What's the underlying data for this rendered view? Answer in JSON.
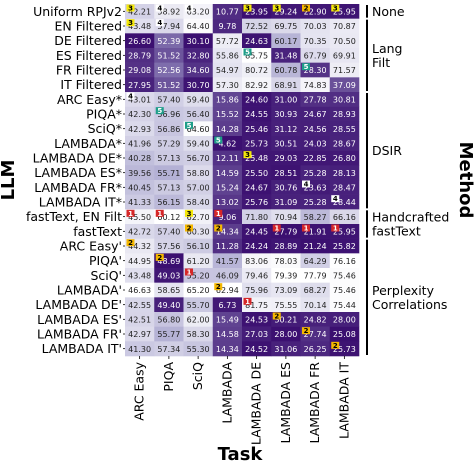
{
  "chart_data": {
    "type": "heatmap",
    "xlabel": "Task",
    "ylabel": "LLM",
    "right_label": "Method",
    "columns": [
      "ARC Easy",
      "PIQA",
      "SciQ",
      "LAMBADA",
      "LAMBADA DE",
      "LAMBADA ES",
      "LAMBADA FR",
      "LAMBADA IT"
    ],
    "rows": [
      "Uniform RPJv2",
      "EN Filtered",
      "DE Filtered",
      "ES Filtered",
      "FR Filtered",
      "IT Filtered",
      "ARC Easy*",
      "PIQA*",
      "SciQ*",
      "LAMBADA*",
      "LAMBADA DE*",
      "LAMBADA ES*",
      "LAMBADA FR*",
      "LAMBADA IT*",
      "fastText, EN Filt",
      "fastText",
      "ARC Easy'",
      "PIQA'",
      "SciQ'",
      "LAMBADA'",
      "LAMBADA DE'",
      "LAMBADA ES'",
      "LAMBADA FR'",
      "LAMBADA IT'"
    ],
    "values": [
      [
        42.21,
        58.92,
        63.2,
        10.77,
        23.95,
        29.24,
        22.9,
        25.95
      ],
      [
        43.48,
        57.94,
        64.4,
        9.78,
        72.52,
        69.75,
        70.03,
        70.87
      ],
      [
        26.6,
        52.39,
        30.1,
        57.72,
        24.63,
        60.17,
        70.35,
        70.5
      ],
      [
        28.79,
        51.52,
        32.8,
        55.86,
        85.75,
        31.48,
        67.79,
        69.91
      ],
      [
        29.08,
        52.56,
        34.6,
        54.97,
        80.72,
        60.78,
        28.3,
        71.57
      ],
      [
        27.95,
        51.52,
        30.7,
        57.3,
        82.92,
        68.91,
        74.83,
        37.09
      ],
      [
        43.01,
        57.4,
        59.4,
        15.86,
        24.6,
        31.0,
        27.78,
        30.81
      ],
      [
        42.3,
        56.96,
        56.4,
        15.52,
        24.55,
        30.93,
        24.67,
        28.93
      ],
      [
        42.93,
        56.86,
        64.6,
        14.28,
        25.46,
        31.12,
        24.56,
        28.55
      ],
      [
        41.96,
        57.29,
        59.4,
        4.62,
        25.73,
        30.51,
        24.03,
        28.67
      ],
      [
        40.28,
        57.13,
        56.7,
        12.11,
        25.48,
        29.03,
        22.85,
        26.8
      ],
      [
        39.56,
        55.71,
        58.8,
        14.59,
        25.5,
        28.51,
        25.28,
        28.13
      ],
      [
        40.45,
        57.13,
        57.0,
        15.24,
        24.67,
        30.76,
        23.63,
        28.47
      ],
      [
        41.33,
        56.15,
        58.4,
        13.02,
        25.76,
        31.09,
        25.28,
        28.44
      ],
      [
        45.5,
        60.12,
        62.7,
        9.06,
        71.8,
        70.94,
        58.27,
        66.16
      ],
      [
        42.72,
        57.4,
        60.3,
        14.34,
        24.45,
        27.79,
        21.91,
        25.95
      ],
      [
        44.32,
        57.56,
        56.1,
        11.28,
        24.24,
        28.89,
        21.24,
        25.82
      ],
      [
        44.95,
        48.69,
        61.2,
        41.57,
        83.06,
        78.03,
        64.29,
        76.16
      ],
      [
        43.48,
        49.03,
        55.2,
        46.09,
        79.46,
        79.39,
        77.79,
        75.46
      ],
      [
        46.63,
        58.65,
        65.2,
        62.94,
        75.96,
        73.09,
        68.27,
        75.46
      ],
      [
        42.55,
        49.4,
        55.7,
        6.73,
        81.75,
        75.55,
        70.14,
        75.44
      ],
      [
        42.51,
        56.8,
        62.0,
        15.49,
        24.53,
        30.21,
        24.82,
        28.0
      ],
      [
        42.97,
        55.77,
        58.3,
        14.58,
        27.03,
        28.0,
        27.74,
        25.08
      ],
      [
        41.3,
        57.34,
        55.3,
        14.34,
        24.52,
        31.06,
        26.25,
        25.73
      ]
    ],
    "rank_badges": [
      {
        "row": 0,
        "col": 0,
        "rank": "3"
      },
      {
        "row": 0,
        "col": 1,
        "rank": "4"
      },
      {
        "row": 0,
        "col": 2,
        "rank": "4"
      },
      {
        "row": 0,
        "col": 4,
        "rank": "3"
      },
      {
        "row": 0,
        "col": 5,
        "rank": "3"
      },
      {
        "row": 0,
        "col": 6,
        "rank": "2"
      },
      {
        "row": 0,
        "col": 7,
        "rank": "3"
      },
      {
        "row": 1,
        "col": 0,
        "rank": "3"
      },
      {
        "row": 1,
        "col": 1,
        "rank": "4"
      },
      {
        "row": 3,
        "col": 4,
        "rank": "5"
      },
      {
        "row": 4,
        "col": 6,
        "rank": "5"
      },
      {
        "row": 6,
        "col": 0,
        "rank": "4"
      },
      {
        "row": 7,
        "col": 1,
        "rank": "5"
      },
      {
        "row": 8,
        "col": 2,
        "rank": "5"
      },
      {
        "row": 9,
        "col": 3,
        "rank": "5"
      },
      {
        "row": 10,
        "col": 4,
        "rank": "3"
      },
      {
        "row": 12,
        "col": 6,
        "rank": "4"
      },
      {
        "row": 13,
        "col": 7,
        "rank": "4"
      },
      {
        "row": 14,
        "col": 0,
        "rank": "1"
      },
      {
        "row": 14,
        "col": 1,
        "rank": "1"
      },
      {
        "row": 14,
        "col": 2,
        "rank": "3"
      },
      {
        "row": 14,
        "col": 3,
        "rank": "1"
      },
      {
        "row": 15,
        "col": 2,
        "rank": "2"
      },
      {
        "row": 15,
        "col": 3,
        "rank": "2"
      },
      {
        "row": 15,
        "col": 5,
        "rank": "1"
      },
      {
        "row": 15,
        "col": 6,
        "rank": "1"
      },
      {
        "row": 15,
        "col": 7,
        "rank": "1"
      },
      {
        "row": 16,
        "col": 0,
        "rank": "2"
      },
      {
        "row": 17,
        "col": 1,
        "rank": "2"
      },
      {
        "row": 18,
        "col": 2,
        "rank": "1"
      },
      {
        "row": 19,
        "col": 3,
        "rank": "2"
      },
      {
        "row": 20,
        "col": 4,
        "rank": "1"
      },
      {
        "row": 21,
        "col": 5,
        "rank": "2"
      },
      {
        "row": 22,
        "col": 6,
        "rank": "2"
      },
      {
        "row": 23,
        "col": 7,
        "rank": "2"
      }
    ],
    "badge_colors": {
      "1": "#d62728",
      "2": "#f5b800",
      "3": "#f5e90a",
      "4": "#ffffff",
      "5": "#1f9e89"
    },
    "cmap": {
      "low": "#ffffff",
      "high": "#3b0f70"
    },
    "groups": [
      {
        "label": "None",
        "start": 0,
        "end": 0
      },
      {
        "label": "Lang Filt",
        "start": 1,
        "end": 5
      },
      {
        "label": "DSIR",
        "start": 6,
        "end": 13
      },
      {
        "label": "Handcrafted fastText",
        "start": 14,
        "end": 15
      },
      {
        "label": "Perplexity Correlations",
        "start": 16,
        "end": 23
      }
    ]
  }
}
